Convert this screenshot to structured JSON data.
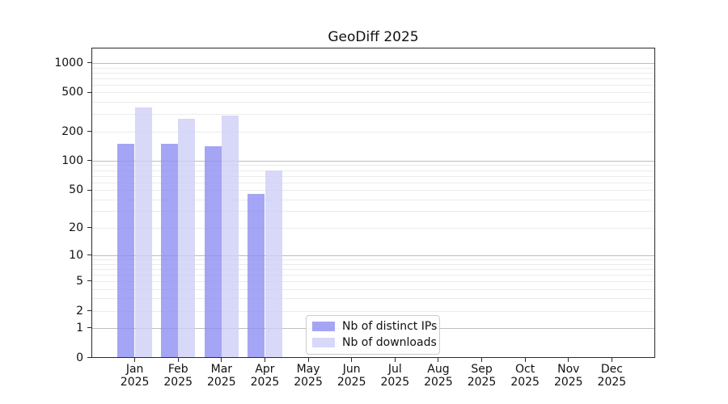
{
  "chart_data": {
    "type": "bar",
    "title": "GeoDiff 2025",
    "x_months": [
      "Jan",
      "Feb",
      "Mar",
      "Apr",
      "May",
      "Jun",
      "Jul",
      "Aug",
      "Sep",
      "Oct",
      "Nov",
      "Dec"
    ],
    "x_year": "2025",
    "series": [
      {
        "name": "Nb of distinct IPs",
        "color": "rgba(143,143,243,0.8)",
        "values": [
          150,
          150,
          140,
          45,
          null,
          null,
          null,
          null,
          null,
          null,
          null,
          null
        ]
      },
      {
        "name": "Nb of downloads",
        "color": "rgba(206,206,246,0.8)",
        "values": [
          350,
          270,
          290,
          80,
          null,
          null,
          null,
          null,
          null,
          null,
          null,
          null
        ]
      }
    ],
    "y_axis": {
      "scale": "log10(value+1)",
      "ticks": [
        0,
        1,
        2,
        5,
        10,
        20,
        50,
        100,
        200,
        500,
        1000
      ],
      "range": [
        0,
        1460
      ]
    },
    "grid": {
      "major_values": [
        1,
        10,
        100,
        1000
      ],
      "minor_values": [
        2,
        3,
        4,
        5,
        6,
        7,
        8,
        9,
        20,
        30,
        40,
        50,
        60,
        70,
        80,
        90,
        200,
        300,
        400,
        500,
        600,
        700,
        800,
        900
      ],
      "major_color": "#bdbdbd",
      "minor_color": "#ebebeb"
    },
    "legend": {
      "position": "lower-center"
    },
    "axis_color": "#2a2a2a",
    "text_color": "#111111"
  }
}
